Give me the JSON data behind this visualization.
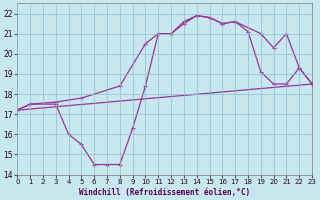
{
  "xlabel": "Windchill (Refroidissement éolien,°C)",
  "xlim": [
    0,
    23
  ],
  "ylim": [
    14,
    22.5
  ],
  "yticks": [
    14,
    15,
    16,
    17,
    18,
    19,
    20,
    21,
    22
  ],
  "xticks": [
    0,
    1,
    2,
    3,
    4,
    5,
    6,
    7,
    8,
    9,
    10,
    11,
    12,
    13,
    14,
    15,
    16,
    17,
    18,
    19,
    20,
    21,
    22,
    23
  ],
  "bg_color": "#c8e8f0",
  "grid_color": "#90bece",
  "line_color": "#993399",
  "line1_x": [
    0,
    23
  ],
  "line1_y": [
    17.2,
    18.5
  ],
  "line2_x": [
    0,
    1,
    3,
    5,
    8,
    10,
    11,
    12,
    13,
    14,
    15,
    16,
    17,
    19,
    20,
    21,
    22,
    23
  ],
  "line2_y": [
    17.2,
    17.5,
    17.6,
    17.8,
    18.4,
    20.5,
    21.0,
    21.0,
    21.6,
    21.9,
    21.8,
    21.5,
    21.6,
    21.0,
    20.3,
    21.0,
    19.3,
    18.5
  ],
  "line3_x": [
    0,
    1,
    3,
    4,
    5,
    6,
    7,
    8,
    9,
    10,
    11,
    12,
    13,
    14,
    15,
    16,
    17,
    18,
    19,
    20,
    21,
    22,
    23
  ],
  "line3_y": [
    17.2,
    17.5,
    17.5,
    16.0,
    15.5,
    14.5,
    14.5,
    14.5,
    16.3,
    18.4,
    21.0,
    21.0,
    21.5,
    21.9,
    21.8,
    21.5,
    21.6,
    21.1,
    19.1,
    18.5,
    18.5,
    19.3,
    18.5
  ]
}
